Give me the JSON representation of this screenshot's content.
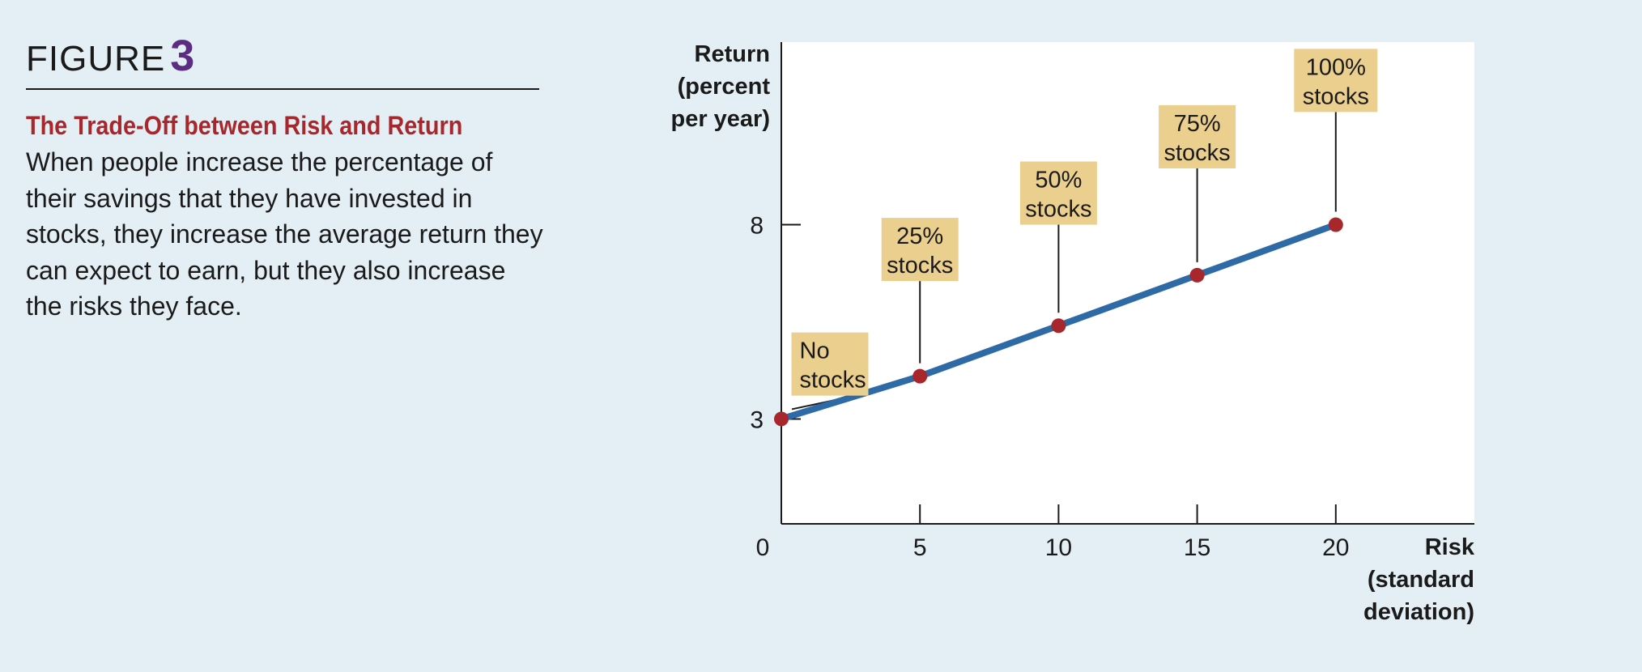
{
  "figure": {
    "label": "FIGURE",
    "number": "3",
    "title": "The Trade-Off between Risk and Return",
    "body": "When people increase the percentage of their savings that they have invested in stocks, they increase the average return they can expect to earn, but they also increase the risks they face."
  },
  "colors": {
    "background": "#e3eff4",
    "line": "#2e6aa5",
    "point": "#a8272d",
    "label_box": "#ebcf8f",
    "title": "#a8272d",
    "figure_number": "#5a2d82"
  },
  "chart_data": {
    "type": "line",
    "title": "",
    "ylabel_lines": [
      "Return",
      "(percent",
      "per year)"
    ],
    "xlabel_lines": [
      "Risk",
      "(standard",
      "deviation)"
    ],
    "x_ticks": [
      "0",
      "5",
      "10",
      "15",
      "20"
    ],
    "y_ticks": [
      "3",
      "8"
    ],
    "xlim": [
      0,
      25
    ],
    "ylim": [
      0.3,
      12.7
    ],
    "series": [
      {
        "points": [
          {
            "x": 0,
            "y": 3,
            "label": [
              "No",
              "stocks"
            ]
          },
          {
            "x": 5,
            "y": 4.1,
            "label": [
              "25%",
              "stocks"
            ]
          },
          {
            "x": 10,
            "y": 5.4,
            "label": [
              "50%",
              "stocks"
            ]
          },
          {
            "x": 15,
            "y": 6.7,
            "label": [
              "75%",
              "stocks"
            ]
          },
          {
            "x": 20,
            "y": 8,
            "label": [
              "100%",
              "stocks"
            ]
          }
        ]
      }
    ],
    "grid": false
  }
}
